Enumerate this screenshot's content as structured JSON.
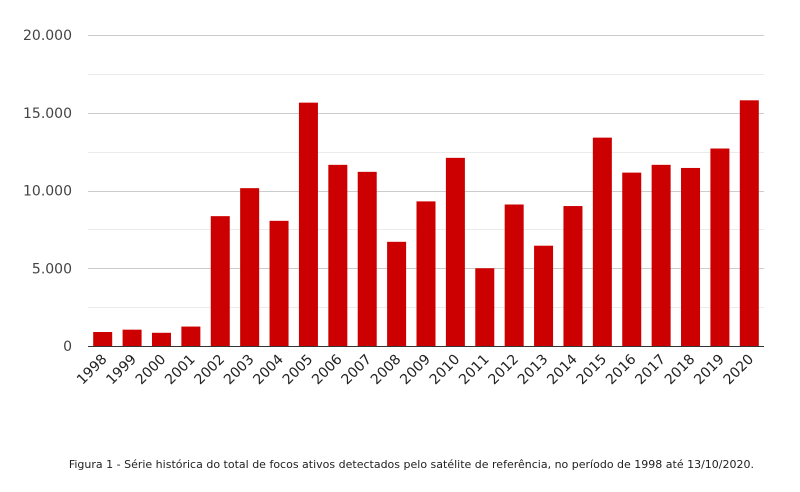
{
  "chart_data": {
    "type": "bar",
    "categories": [
      "1998",
      "1999",
      "2000",
      "2001",
      "2002",
      "2003",
      "2004",
      "2005",
      "2006",
      "2007",
      "2008",
      "2009",
      "2010",
      "2011",
      "2012",
      "2013",
      "2014",
      "2015",
      "2016",
      "2017",
      "2018",
      "2019",
      "2020"
    ],
    "values": [
      900,
      1050,
      850,
      1250,
      8350,
      10150,
      8050,
      15650,
      11650,
      11200,
      6700,
      9300,
      12100,
      5000,
      9100,
      6450,
      9000,
      13400,
      11150,
      11650,
      11450,
      12700,
      15800
    ],
    "y_ticks": [
      "0",
      "5.000",
      "10.000",
      "15.000",
      "20.000"
    ],
    "ylim": [
      0,
      20000
    ],
    "bar_color": "#cc0000",
    "grid": true
  },
  "caption": "Figura 1 - Série histórica do total de focos ativos detectados pelo satélite de referência, no período de 1998 até 13/10/2020."
}
